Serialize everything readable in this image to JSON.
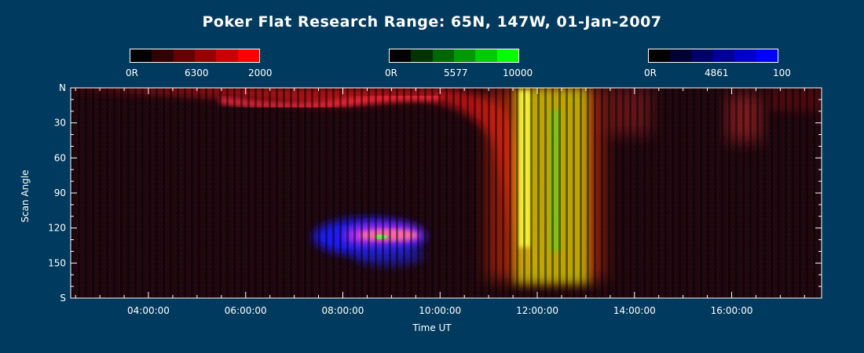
{
  "chart_data": {
    "type": "heatmap",
    "title": "Poker Flat Research Range: 65N, 147W, 01-Jan-2007",
    "xlabel": "Time UT",
    "ylabel": "Scan Angle",
    "x_ticks": [
      "04:00:00",
      "06:00:00",
      "08:00:00",
      "10:00:00",
      "12:00:00",
      "14:00:00",
      "16:00:00"
    ],
    "y_ticks": [
      "N",
      "30",
      "60",
      "90",
      "120",
      "150",
      "S"
    ],
    "xlim_hours": [
      2.4,
      17.85
    ],
    "ylim": [
      0,
      180
    ],
    "colorbars": [
      {
        "channel": "red",
        "min": "0R",
        "wavelength": "6300",
        "max": "2000",
        "color": "#ff0000"
      },
      {
        "channel": "green",
        "min": "0R",
        "wavelength": "5577",
        "max": "10000",
        "color": "#00ff00"
      },
      {
        "channel": "blue",
        "min": "0R",
        "wavelength": "4861",
        "max": "100",
        "color": "#0000ff"
      }
    ],
    "features": [
      {
        "desc": "6300 red arc",
        "time_start": 3.0,
        "time_end": 11.6,
        "angle_start": 5,
        "angle_end": 25
      },
      {
        "desc": "4861 blue patch",
        "time_start": 7.5,
        "time_end": 10.0,
        "angle_start": 110,
        "angle_end": 145
      },
      {
        "desc": "5577 green/yellow aurora",
        "time_start": 11.4,
        "time_end": 13.4,
        "angle_start": 0,
        "angle_end": 165
      }
    ]
  }
}
